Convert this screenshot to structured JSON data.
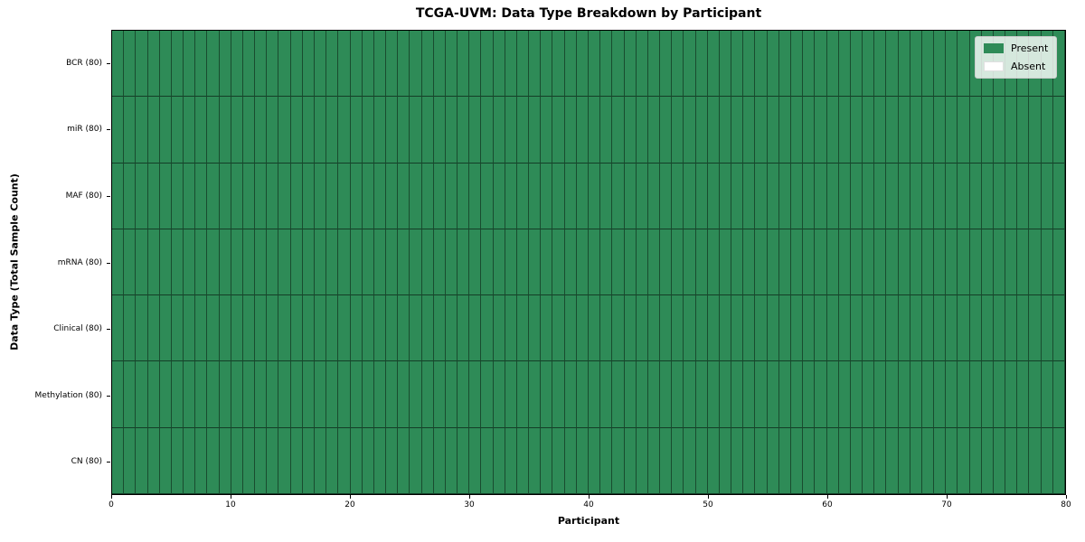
{
  "chart_data": {
    "type": "heatmap",
    "title": "TCGA-UVM: Data Type Breakdown by Participant",
    "xlabel": "Participant",
    "ylabel": "Data Type (Total Sample Count)",
    "xlim": [
      0,
      80
    ],
    "x_ticks": [
      0,
      10,
      20,
      30,
      40,
      50,
      60,
      70,
      80
    ],
    "n_participants": 80,
    "grid": "cell-edges",
    "legend_position": "upper right",
    "rows": [
      {
        "label": "BCR (80)",
        "data_type": "BCR",
        "total_samples": 80,
        "present_participants": 80,
        "absent_participants": 0
      },
      {
        "label": "miR (80)",
        "data_type": "miR",
        "total_samples": 80,
        "present_participants": 80,
        "absent_participants": 0
      },
      {
        "label": "MAF (80)",
        "data_type": "MAF",
        "total_samples": 80,
        "present_participants": 80,
        "absent_participants": 0
      },
      {
        "label": "mRNA (80)",
        "data_type": "mRNA",
        "total_samples": 80,
        "present_participants": 80,
        "absent_participants": 0
      },
      {
        "label": "Clinical (80)",
        "data_type": "Clinical",
        "total_samples": 80,
        "present_participants": 80,
        "absent_participants": 0
      },
      {
        "label": "Methylation (80)",
        "data_type": "Methylation",
        "total_samples": 80,
        "present_participants": 80,
        "absent_participants": 0
      },
      {
        "label": "CN (80)",
        "data_type": "CN",
        "total_samples": 80,
        "present_participants": 80,
        "absent_participants": 0
      }
    ],
    "matrix_note": "all 7 rows x 80 participants are value 1 (present); no absent cells visible",
    "colors": {
      "present": "#2e8b57",
      "absent": "#ffffff",
      "cell_edge": "rgba(0,0,0,0.45)",
      "spine": "#000000"
    },
    "legend": [
      {
        "label": "Present",
        "color": "#2e8b57"
      },
      {
        "label": "Absent",
        "color": "#ffffff"
      }
    ]
  }
}
